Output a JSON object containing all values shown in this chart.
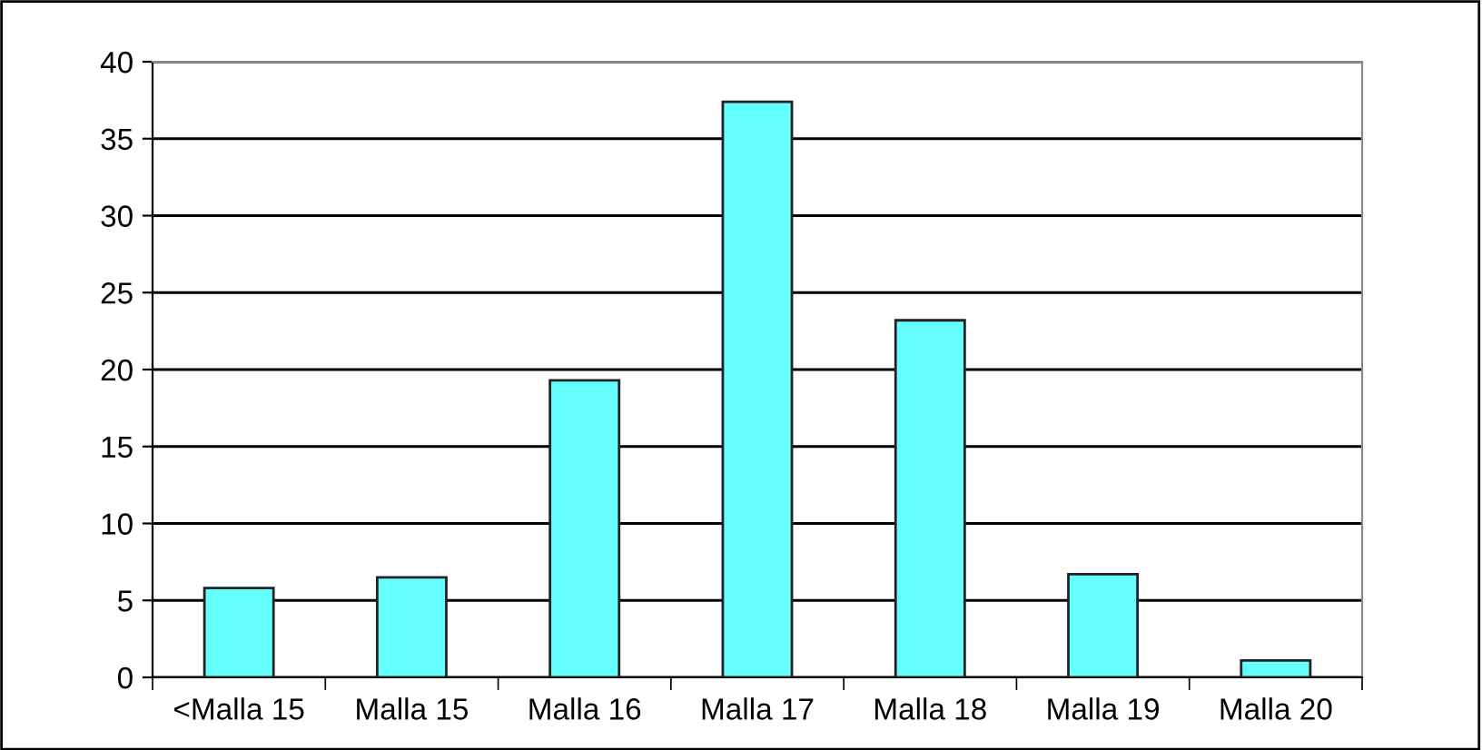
{
  "chart_data": {
    "type": "bar",
    "categories": [
      "<Malla 15",
      "Malla 15",
      "Malla 16",
      "Malla 17",
      "Malla 18",
      "Malla 19",
      "Malla 20"
    ],
    "values": [
      5.8,
      6.5,
      19.3,
      37.4,
      23.2,
      6.7,
      1.1
    ],
    "color": "#66ffff",
    "ylim": [
      0,
      40
    ],
    "yticks": [
      0,
      5,
      10,
      15,
      20,
      25,
      30,
      35,
      40
    ],
    "grid": "y",
    "legend": false
  }
}
